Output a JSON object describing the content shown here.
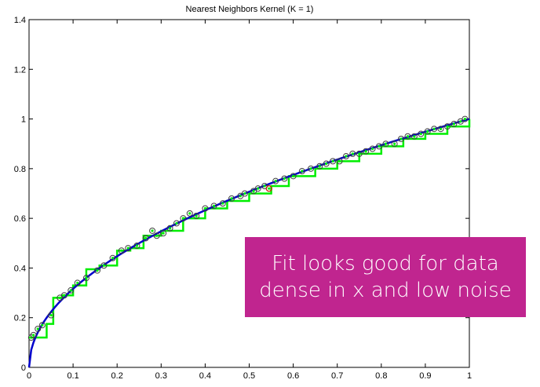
{
  "chart_data": {
    "type": "scatter",
    "title": "Nearest Neighbors Kernel (K = 1)",
    "xlabel": "",
    "ylabel": "",
    "xlim": [
      0,
      1
    ],
    "ylim": [
      0,
      1.4
    ],
    "x_ticks": [
      "0",
      "0.1",
      "0.2",
      "0.3",
      "0.4",
      "0.5",
      "0.6",
      "0.7",
      "0.8",
      "0.9",
      "1"
    ],
    "y_ticks": [
      "0",
      "0.2",
      "0.4",
      "0.6",
      "0.8",
      "1",
      "1.2",
      "1.4"
    ],
    "grid": false,
    "series": [
      {
        "role": "true function",
        "style": "line",
        "color": "#0000cc",
        "function": "sqrt(x)",
        "x": [
          0,
          0.0025,
          0.01,
          0.02,
          0.04,
          0.06,
          0.1,
          0.15,
          0.2,
          0.3,
          0.4,
          0.5,
          0.6,
          0.7,
          0.8,
          0.9,
          1.0
        ],
        "y": [
          0,
          0.05,
          0.1,
          0.141,
          0.2,
          0.245,
          0.316,
          0.387,
          0.447,
          0.548,
          0.632,
          0.707,
          0.775,
          0.837,
          0.894,
          0.949,
          1.0
        ]
      },
      {
        "role": "data points",
        "style": "circle-markers",
        "color": "#404040",
        "x": [
          0.005,
          0.01,
          0.02,
          0.03,
          0.05,
          0.07,
          0.08,
          0.095,
          0.11,
          0.13,
          0.155,
          0.17,
          0.19,
          0.21,
          0.225,
          0.245,
          0.265,
          0.28,
          0.29,
          0.305,
          0.32,
          0.335,
          0.35,
          0.365,
          0.38,
          0.4,
          0.42,
          0.44,
          0.46,
          0.48,
          0.49,
          0.51,
          0.52,
          0.535,
          0.545,
          0.56,
          0.58,
          0.6,
          0.62,
          0.64,
          0.66,
          0.675,
          0.69,
          0.705,
          0.72,
          0.735,
          0.75,
          0.765,
          0.78,
          0.795,
          0.81,
          0.83,
          0.845,
          0.86,
          0.875,
          0.89,
          0.905,
          0.92,
          0.935,
          0.95,
          0.965,
          0.98,
          0.99
        ],
        "y": [
          0.12,
          0.13,
          0.155,
          0.17,
          0.21,
          0.28,
          0.29,
          0.31,
          0.34,
          0.36,
          0.39,
          0.41,
          0.44,
          0.47,
          0.48,
          0.49,
          0.52,
          0.55,
          0.53,
          0.54,
          0.56,
          0.58,
          0.6,
          0.62,
          0.61,
          0.64,
          0.65,
          0.66,
          0.68,
          0.69,
          0.7,
          0.71,
          0.72,
          0.73,
          0.72,
          0.75,
          0.76,
          0.77,
          0.79,
          0.8,
          0.81,
          0.82,
          0.83,
          0.83,
          0.85,
          0.86,
          0.86,
          0.87,
          0.88,
          0.89,
          0.9,
          0.9,
          0.92,
          0.93,
          0.93,
          0.94,
          0.95,
          0.96,
          0.96,
          0.97,
          0.98,
          0.99,
          1.0
        ]
      },
      {
        "role": "nearest neighbor fit",
        "style": "step",
        "color": "#00ee00",
        "x": [
          0.0,
          0.04,
          0.055,
          0.075,
          0.1,
          0.13,
          0.16,
          0.2,
          0.23,
          0.26,
          0.3,
          0.35,
          0.4,
          0.45,
          0.5,
          0.55,
          0.59,
          0.65,
          0.7,
          0.75,
          0.8,
          0.85,
          0.9,
          0.95,
          1.0
        ],
        "y": [
          0.12,
          0.175,
          0.28,
          0.29,
          0.33,
          0.395,
          0.41,
          0.47,
          0.48,
          0.53,
          0.55,
          0.6,
          0.64,
          0.67,
          0.7,
          0.73,
          0.77,
          0.8,
          0.83,
          0.86,
          0.89,
          0.92,
          0.94,
          0.97,
          1.0
        ]
      }
    ],
    "annotations": [
      {
        "x": 0.545,
        "y": 0.72,
        "marker": "circle",
        "color": "#cc2200"
      }
    ]
  },
  "callout": {
    "line1": "Fit looks good for data",
    "line2": "dense in x and low noise",
    "background": "#c0258f"
  },
  "colors": {
    "true_function": "#0000cc",
    "fit": "#00ee00",
    "points": "#404040",
    "highlight": "#cc2200"
  }
}
